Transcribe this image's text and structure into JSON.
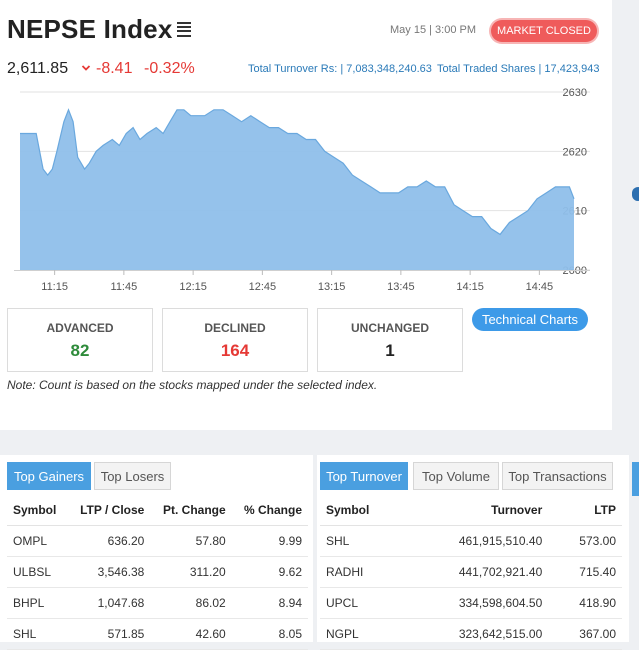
{
  "header": {
    "title": "NEPSE Index",
    "datetime": "May 15 | 3:00 PM",
    "market_status": "MARKET CLOSED",
    "index_value": "2,611.85",
    "change_abs": "-8.41",
    "change_pct": "-0.32%",
    "total_turnover": "Total Turnover Rs: | 7,083,348,240.63",
    "total_traded_shares": "Total Traded Shares | 17,423,943"
  },
  "chart_data": {
    "type": "area",
    "x_ticks": [
      "11:15",
      "11:45",
      "12:15",
      "12:45",
      "13:15",
      "13:45",
      "14:15",
      "14:45"
    ],
    "y_ticks": [
      "2630",
      "2620",
      "2610",
      "2600"
    ],
    "ylim": [
      2600,
      2630
    ],
    "color": "#8fbfea",
    "x": [
      "11:00",
      "11:04",
      "11:07",
      "11:10",
      "11:12",
      "11:14",
      "11:16",
      "11:19",
      "11:21",
      "11:23",
      "11:25",
      "11:28",
      "11:30",
      "11:33",
      "11:36",
      "11:40",
      "11:43",
      "11:46",
      "11:49",
      "11:52",
      "11:55",
      "11:59",
      "12:02",
      "12:05",
      "12:08",
      "12:11",
      "12:14",
      "12:17",
      "12:20",
      "12:24",
      "12:28",
      "12:32",
      "12:36",
      "12:40",
      "12:44",
      "12:48",
      "12:52",
      "12:56",
      "13:00",
      "13:04",
      "13:08",
      "13:12",
      "13:16",
      "13:20",
      "13:24",
      "13:28",
      "13:32",
      "13:36",
      "13:40",
      "13:44",
      "13:48",
      "13:52",
      "13:56",
      "14:00",
      "14:04",
      "14:08",
      "14:12",
      "14:16",
      "14:20",
      "14:24",
      "14:28",
      "14:32",
      "14:36",
      "14:40",
      "14:44",
      "14:48",
      "14:52",
      "14:55",
      "14:58",
      "15:00"
    ],
    "values": [
      2623,
      2623,
      2623,
      2617,
      2616,
      2617,
      2620,
      2625,
      2627,
      2625,
      2619,
      2617,
      2618,
      2620,
      2621,
      2622,
      2621,
      2623,
      2624,
      2622,
      2623,
      2624,
      2623,
      2625,
      2627,
      2627,
      2626,
      2626,
      2626,
      2627,
      2627,
      2626,
      2625,
      2626,
      2625,
      2624,
      2624,
      2623,
      2623,
      2622,
      2622,
      2620,
      2619,
      2618,
      2616,
      2615,
      2614,
      2613,
      2613,
      2613,
      2614,
      2614,
      2615,
      2614,
      2614,
      2611,
      2610,
      2609,
      2609,
      2607,
      2606,
      2608,
      2609,
      2610,
      2612,
      2613,
      2614,
      2614,
      2614,
      2612
    ]
  },
  "breadth": {
    "advanced_label": "ADVANCED",
    "advanced": "82",
    "declined_label": "DECLINED",
    "declined": "164",
    "unchanged_label": "UNCHANGED",
    "unchanged": "1"
  },
  "technical_charts_label": "Technical Charts",
  "note": "Note: Count is based on the stocks mapped under the selected index.",
  "gainers_panel": {
    "tabs": [
      "Top Gainers",
      "Top Losers"
    ],
    "columns": [
      "Symbol",
      "LTP / Close",
      "Pt. Change",
      "% Change"
    ],
    "rows": [
      {
        "symbol": "OMPL",
        "ltp": "636.20",
        "pt": "57.80",
        "pct": "9.99"
      },
      {
        "symbol": "ULBSL",
        "ltp": "3,546.38",
        "pt": "311.20",
        "pct": "9.62"
      },
      {
        "symbol": "BHPL",
        "ltp": "1,047.68",
        "pt": "86.02",
        "pct": "8.94"
      },
      {
        "symbol": "SHL",
        "ltp": "571.85",
        "pt": "42.60",
        "pct": "8.05"
      }
    ]
  },
  "turnover_panel": {
    "tabs": [
      "Top Turnover",
      "Top Volume",
      "Top Transactions"
    ],
    "columns": [
      "Symbol",
      "Turnover",
      "LTP"
    ],
    "rows": [
      {
        "symbol": "SHL",
        "turnover": "461,915,510.40",
        "ltp": "573.00"
      },
      {
        "symbol": "RADHI",
        "turnover": "441,702,921.40",
        "ltp": "715.40"
      },
      {
        "symbol": "UPCL",
        "turnover": "334,598,604.50",
        "ltp": "418.90"
      },
      {
        "symbol": "NGPL",
        "turnover": "323,642,515.00",
        "ltp": "367.00"
      }
    ]
  }
}
